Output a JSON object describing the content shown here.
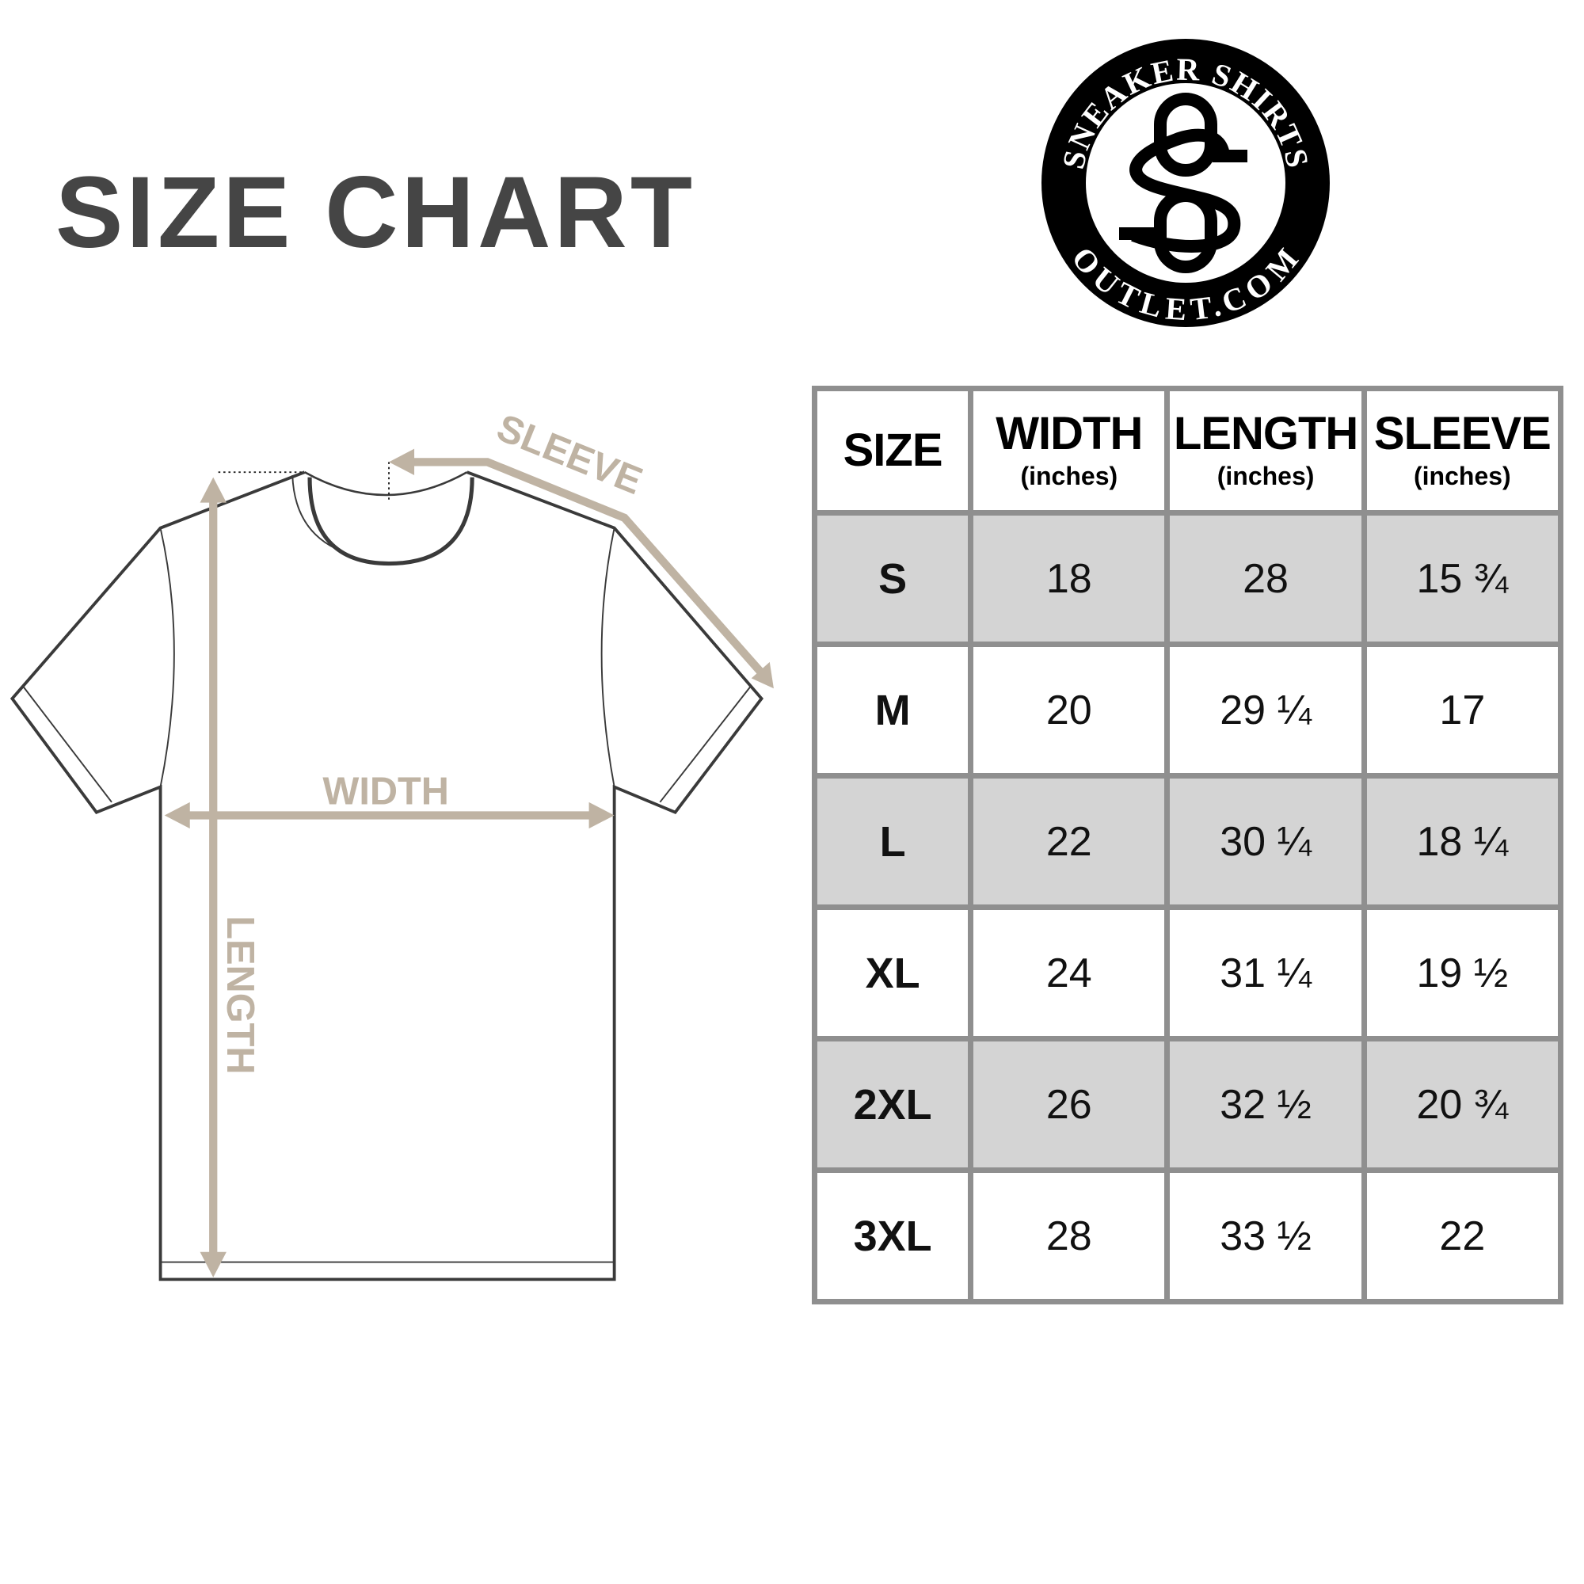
{
  "title": "SIZE CHART",
  "logo": {
    "top_text": "SNEAKER SHIRTS",
    "bottom_text": "OUTLET.COM",
    "monogram": "SO"
  },
  "diagram": {
    "sleeve_label": "SLEEVE",
    "width_label": "WIDTH",
    "length_label": "LENGTH",
    "arrow_color": "#bfb3a3"
  },
  "table": {
    "headers": [
      {
        "label": "SIZE",
        "unit": ""
      },
      {
        "label": "WIDTH",
        "unit": "(inches)"
      },
      {
        "label": "LENGTH",
        "unit": "(inches)"
      },
      {
        "label": "SLEEVE",
        "unit": "(inches)"
      }
    ],
    "rows": [
      [
        "S",
        "18",
        "28",
        "15 ¾"
      ],
      [
        "M",
        "20",
        "29 ¼",
        "17"
      ],
      [
        "L",
        "22",
        "30 ¼",
        "18 ¼"
      ],
      [
        "XL",
        "24",
        "31 ¼",
        "19 ½"
      ],
      [
        "2XL",
        "26",
        "32 ½",
        "20 ¾"
      ],
      [
        "3XL",
        "28",
        "33 ½",
        "22"
      ]
    ],
    "shade_color": "#d4d4d4",
    "border_color": "#8f8f8f"
  }
}
